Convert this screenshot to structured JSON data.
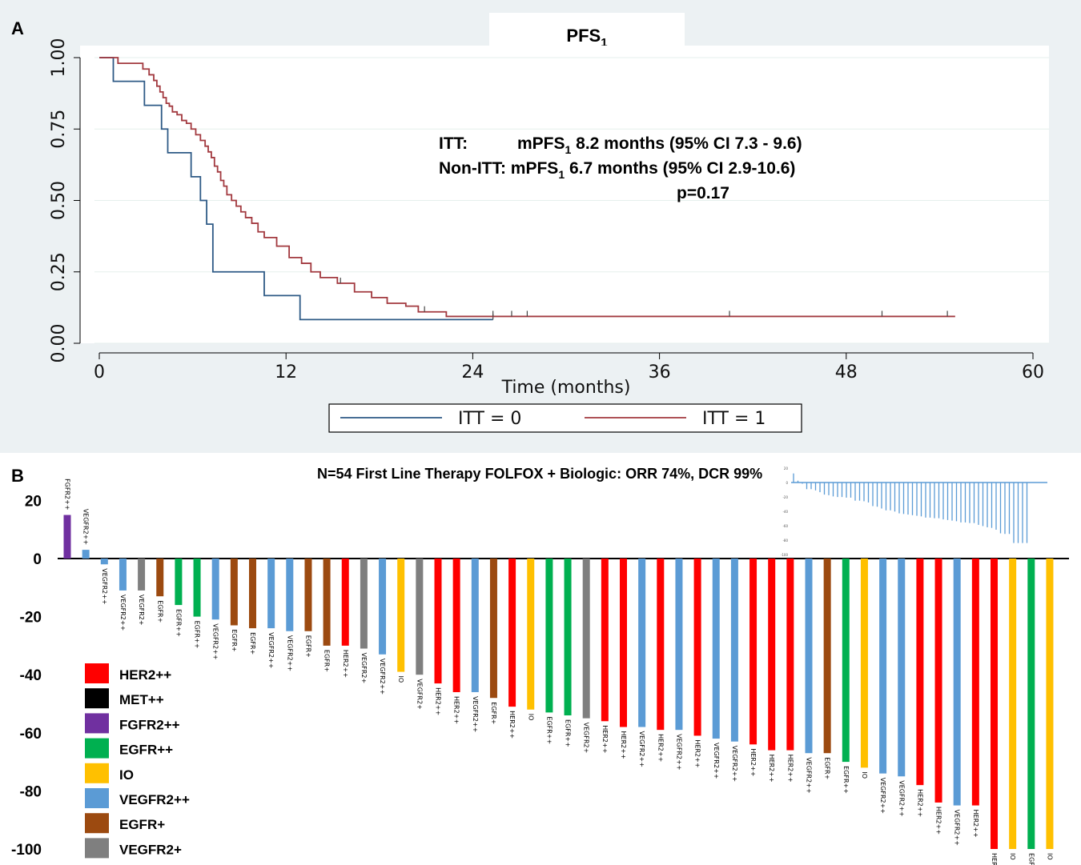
{
  "panel_a": {
    "letter": "A",
    "title_main": "PFS",
    "title_sub": "1",
    "annotation": {
      "line1_label": "ITT:",
      "line1_pre": "mPFS",
      "line1_sub": "1",
      "line1_post": " 8.2 months (95% CI 7.3 - 9.6)",
      "line2_pre": "Non-ITT: mPFS",
      "line2_sub": "1",
      "line2_post": " 6.7 months (95% CI 2.9-10.6)",
      "line3": "p=0.17"
    }
  },
  "panel_b": {
    "letter": "B",
    "title": "N=54 First Line Therapy FOLFOX + Biologic: ORR 74%, DCR 99%"
  },
  "colors": {
    "itt0": "#2e5a86",
    "itt1": "#a2393f",
    "HER2++": "#ff0000",
    "MET++": "#000000",
    "FGFR2++": "#7030a0",
    "EGFR++": "#00b050",
    "IO": "#ffc000",
    "VEGFR2++": "#5b9bd5",
    "EGFR+": "#9c4a10",
    "VEGFR2+": "#7f7f7f"
  },
  "chart_data": [
    {
      "type": "line",
      "title": "PFS1",
      "xlabel": "Time (months)",
      "ylabel": "",
      "xlim": [
        0,
        60
      ],
      "ylim": [
        0,
        1
      ],
      "x_ticks": [
        "0",
        "12",
        "24",
        "36",
        "48",
        "60"
      ],
      "y_ticks": [
        "0.00",
        "0.25",
        "0.50",
        "0.75",
        "1.00"
      ],
      "legend": [
        "ITT = 0",
        "ITT = 1"
      ],
      "legend_position": "bottom",
      "grid": true,
      "series": [
        {
          "name": "ITT = 0",
          "x": [
            0,
            0.9,
            2.9,
            4.0,
            4.4,
            5.9,
            6.5,
            6.9,
            7.3,
            10.6,
            12.9,
            25.3
          ],
          "y": [
            1.0,
            0.917,
            0.833,
            0.75,
            0.667,
            0.583,
            0.5,
            0.417,
            0.25,
            0.167,
            0.083,
            0.083
          ],
          "censored_x": [
            25.3
          ]
        },
        {
          "name": "ITT = 1",
          "x": [
            0,
            1.2,
            2.8,
            3.2,
            3.5,
            3.7,
            3.9,
            4.1,
            4.3,
            4.5,
            4.7,
            5.0,
            5.3,
            5.6,
            5.9,
            6.2,
            6.5,
            6.8,
            7.0,
            7.2,
            7.4,
            7.6,
            7.8,
            8.0,
            8.2,
            8.5,
            8.8,
            9.1,
            9.4,
            9.8,
            10.2,
            10.6,
            11.4,
            12.2,
            13.0,
            13.6,
            14.2,
            15.3,
            16.4,
            17.5,
            18.5,
            19.7,
            20.5,
            22.3,
            55.0
          ],
          "y": [
            1.0,
            0.98,
            0.96,
            0.94,
            0.92,
            0.9,
            0.88,
            0.86,
            0.84,
            0.83,
            0.81,
            0.8,
            0.78,
            0.77,
            0.75,
            0.73,
            0.71,
            0.69,
            0.67,
            0.65,
            0.62,
            0.6,
            0.57,
            0.55,
            0.52,
            0.5,
            0.48,
            0.46,
            0.44,
            0.42,
            0.39,
            0.37,
            0.34,
            0.3,
            0.28,
            0.25,
            0.23,
            0.21,
            0.18,
            0.16,
            0.14,
            0.13,
            0.11,
            0.094,
            0.094
          ],
          "censored_x": [
            15.5,
            20.9,
            25.3,
            26.5,
            27.5,
            40.5,
            50.3,
            54.5
          ]
        }
      ]
    },
    {
      "type": "bar",
      "title": "N=54 First Line Therapy FOLFOX + Biologic: ORR 74%, DCR 99%",
      "ylabel": "",
      "ylim": [
        -100,
        25
      ],
      "y_ticks": [
        "20",
        "0",
        "-20",
        "-40",
        "-60",
        "-80",
        "-100"
      ],
      "legend_position": "bottom-left",
      "legend": [
        "HER2++",
        "MET++",
        "FGFR2++",
        "EGFR++",
        "IO",
        "VEGFR2++",
        "EGFR+",
        "VEGFR2+"
      ],
      "categories": [
        "FGFR2++",
        "VEGFR2++",
        "VEGFR2++",
        "VEGFR2++",
        "VEGFR2+",
        "EGFR+",
        "EGFR++",
        "EGFR++",
        "VEGFR2++",
        "EGFR+",
        "EGFR+",
        "VEGFR2++",
        "VEGFR2++",
        "EGFR+",
        "EGFR+",
        "HER2++",
        "VEGFR2+",
        "VEGFR2++",
        "IO",
        "VEGFR2+",
        "HER2++",
        "HER2++",
        "VEGFR2++",
        "EGFR+",
        "HER2++",
        "IO",
        "EGFR++",
        "EGFR++",
        "VEGFR2+",
        "HER2++",
        "HER2++",
        "VEGFR2++",
        "HER2++",
        "VEGFR2++",
        "HER2++",
        "VEGFR2++",
        "VEGFR2++",
        "HER2++",
        "HER2++",
        "HER2++",
        "VEGFR2++",
        "EGFR+",
        "EGFR++",
        "IO",
        "VEGFR2++",
        "VEGFR2++",
        "HER2++",
        "HER2++",
        "VEGFR2++",
        "HER2++",
        "HER2++",
        "IO",
        "EGFR++",
        "IO"
      ],
      "values": [
        15,
        3,
        -2,
        -11,
        -11,
        -13,
        -16,
        -20,
        -21,
        -23,
        -24,
        -24,
        -25,
        -25,
        -30,
        -30,
        -31,
        -33,
        -39,
        -40,
        -43,
        -46,
        -46,
        -48,
        -51,
        -52,
        -53,
        -54,
        -55,
        -56,
        -58,
        -58,
        -59,
        -59,
        -61,
        -62,
        -63,
        -64,
        -66,
        -66,
        -67,
        -67,
        -70,
        -72,
        -74,
        -75,
        -78,
        -84,
        -85,
        -85,
        -100,
        -100,
        -100,
        -100
      ]
    }
  ]
}
